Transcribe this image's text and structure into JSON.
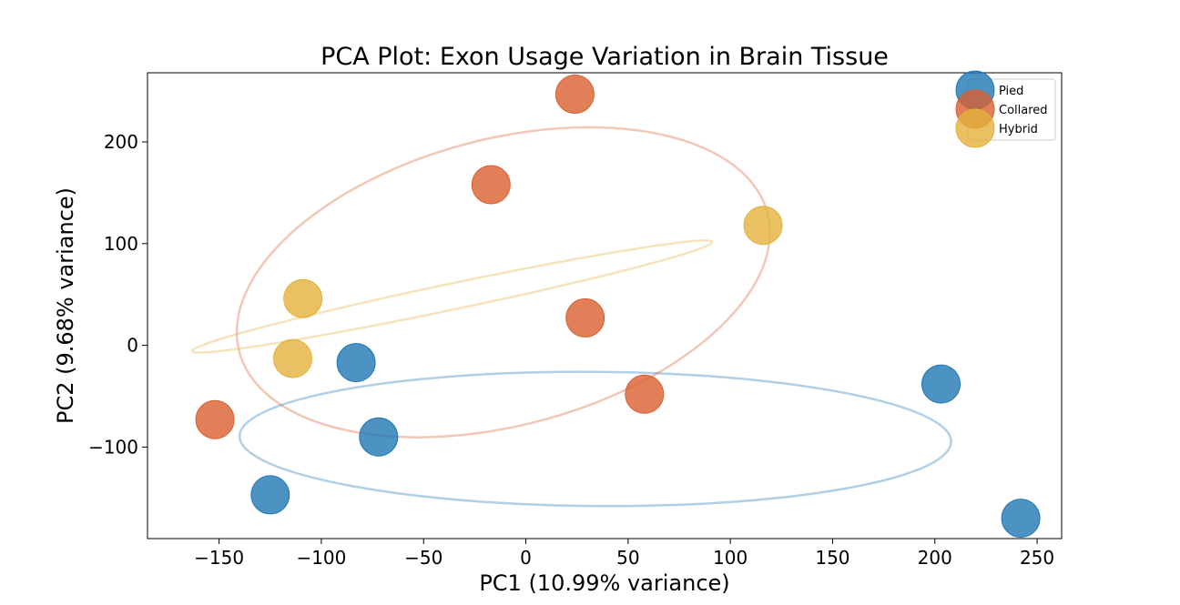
{
  "chart_data": {
    "type": "scatter",
    "title": "PCA Plot: Exon Usage Variation in Brain Tissue",
    "xlabel": "PC1 (10.99% variance)",
    "ylabel": "PC2 (9.68% variance)",
    "xlim": [
      -185,
      262
    ],
    "ylim": [
      -190,
      268
    ],
    "xticks": [
      -150,
      -100,
      -50,
      0,
      50,
      100,
      150,
      200,
      250
    ],
    "yticks": [
      -100,
      0,
      100,
      200
    ],
    "grid": false,
    "legend": "top-right",
    "series": [
      {
        "name": "Pied",
        "color": "#1f77b4",
        "points": [
          [
            -125,
            -147
          ],
          [
            -83,
            -17
          ],
          [
            -72,
            -90
          ],
          [
            203,
            -38
          ],
          [
            242,
            -170
          ]
        ],
        "ellipse": {
          "cx": 34,
          "cy": -92,
          "rx": 174,
          "ry": 66,
          "angle_deg": -1
        }
      },
      {
        "name": "Collared",
        "color": "#d95f30",
        "points": [
          [
            -152,
            -73
          ],
          [
            -17,
            158
          ],
          [
            24,
            247
          ],
          [
            29,
            27
          ],
          [
            58,
            -48
          ]
        ],
        "ellipse": {
          "cx": -11,
          "cy": 62,
          "rx": 165,
          "ry": 114,
          "angle_deg": 58
        }
      },
      {
        "name": "Hybrid",
        "color": "#e3b23c",
        "points": [
          [
            -114,
            -13
          ],
          [
            -109,
            46
          ],
          [
            116,
            118
          ]
        ],
        "ellipse": {
          "cx": -36,
          "cy": 48,
          "rx": 138,
          "ry": 12,
          "angle_deg": 23
        }
      }
    ]
  }
}
